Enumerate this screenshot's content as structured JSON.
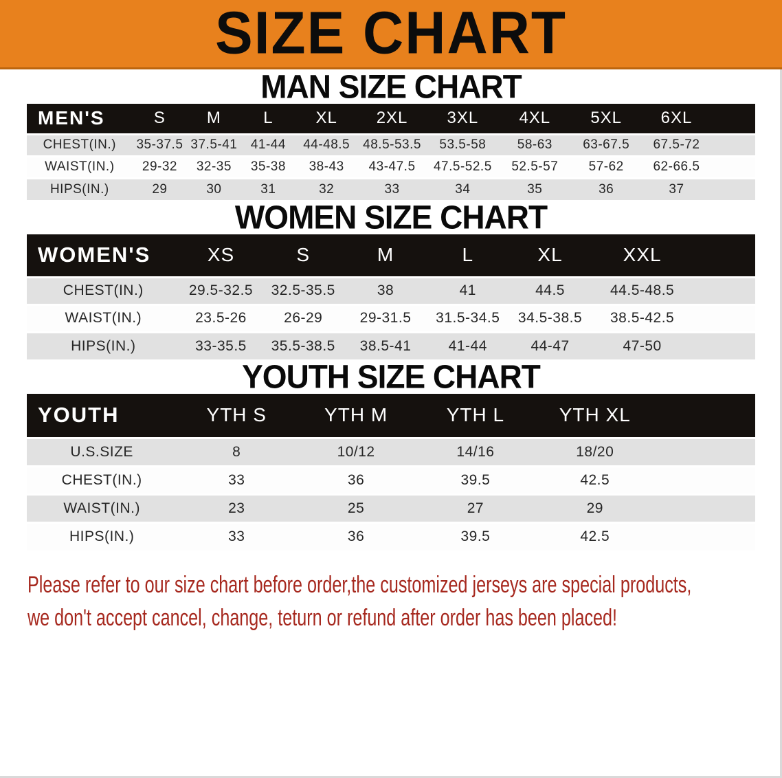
{
  "banner": {
    "title": "SIZE CHART"
  },
  "colors": {
    "banner_bg": "#e8811d",
    "banner_border": "#bc650d",
    "title_color": "#0c0c0c",
    "header_row_bg": "#15110e",
    "stripe_gray": "#e1e1e1",
    "disclaimer_red": "#a6281e"
  },
  "sections": [
    {
      "heading": "MAN SIZE CHART",
      "table": {
        "header": [
          "MEN'S",
          "S",
          "M",
          "L",
          "XL",
          "2XL",
          "3XL",
          "4XL",
          "5XL",
          "6XL"
        ],
        "rows": [
          [
            "CHEST(IN.)",
            "35-37.5",
            "37.5-41",
            "41-44",
            "44-48.5",
            "48.5-53.5",
            "53.5-58",
            "58-63",
            "63-67.5",
            "67.5-72"
          ],
          [
            "WAIST(IN.)",
            "29-32",
            "32-35",
            "35-38",
            "38-43",
            "43-47.5",
            "47.5-52.5",
            "52.5-57",
            "57-62",
            "62-66.5"
          ],
          [
            "HIPS(IN.)",
            "29",
            "30",
            "31",
            "32",
            "33",
            "34",
            "35",
            "36",
            "37"
          ]
        ]
      }
    },
    {
      "heading": "WOMEN SIZE CHART",
      "table": {
        "header": [
          "WOMEN'S",
          "XS",
          "S",
          "M",
          "L",
          "XL",
          "XXL"
        ],
        "rows": [
          [
            "CHEST(IN.)",
            "29.5-32.5",
            "32.5-35.5",
            "38",
            "41",
            "44.5",
            "44.5-48.5"
          ],
          [
            "WAIST(IN.)",
            "23.5-26",
            "26-29",
            "29-31.5",
            "31.5-34.5",
            "34.5-38.5",
            "38.5-42.5"
          ],
          [
            "HIPS(IN.)",
            "33-35.5",
            "35.5-38.5",
            "38.5-41",
            "41-44",
            "44-47",
            "47-50"
          ]
        ]
      }
    },
    {
      "heading": "YOUTH SIZE CHART",
      "table": {
        "header": [
          "YOUTH",
          "YTH S",
          "YTH M",
          "YTH L",
          "YTH XL"
        ],
        "rows": [
          [
            "U.S.SIZE",
            "8",
            "10/12",
            "14/16",
            "18/20"
          ],
          [
            "CHEST(IN.)",
            "33",
            "36",
            "39.5",
            "42.5"
          ],
          [
            "WAIST(IN.)",
            "23",
            "25",
            "27",
            "29"
          ],
          [
            "HIPS(IN.)",
            "33",
            "36",
            "39.5",
            "42.5"
          ]
        ]
      }
    }
  ],
  "disclaimer": {
    "line1": "Please refer to our size chart before order,the customized jerseys are special products,",
    "line2": "we don't accept cancel, change, teturn or refund after order has been placed!"
  }
}
